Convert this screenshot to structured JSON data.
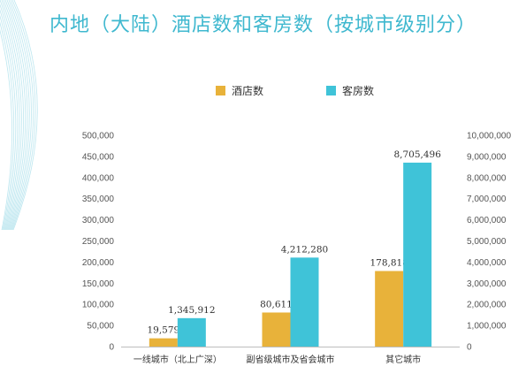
{
  "title": "内地（大陆）酒店数和客房数（按城市级别分）",
  "colors": {
    "title": "#3fb8cf",
    "hotels": "#e8b23a",
    "rooms": "#3fc3d8"
  },
  "chart_data": {
    "type": "bar",
    "title": "内地（大陆）酒店数和客房数（按城市级别分）",
    "categories": [
      "一线城市（北上广深）",
      "副省级城市及省会城市",
      "其它城市"
    ],
    "series": [
      {
        "name": "酒店数",
        "axis": "left",
        "values": [
          19579,
          80611,
          178818
        ],
        "labels": [
          "19,579",
          "80,611",
          "178,818"
        ]
      },
      {
        "name": "客房数",
        "axis": "right",
        "values": [
          1345912,
          4212280,
          8705496
        ],
        "labels": [
          "1,345,912",
          "4,212,280",
          "8,705,496"
        ]
      }
    ],
    "ylim_left": [
      0,
      500000
    ],
    "ylim_right": [
      0,
      10000000
    ],
    "yticks_left": [
      "0",
      "50,000",
      "100,000",
      "150,000",
      "200,000",
      "250,000",
      "300,000",
      "350,000",
      "400,000",
      "450,000",
      "500,000"
    ],
    "yticks_right": [
      "0",
      "1,000,000",
      "2,000,000",
      "3,000,000",
      "4,000,000",
      "5,000,000",
      "6,000,000",
      "7,000,000",
      "8,000,000",
      "9,000,000",
      "10,000,000"
    ],
    "legend_position": "top-center",
    "grid": false
  }
}
